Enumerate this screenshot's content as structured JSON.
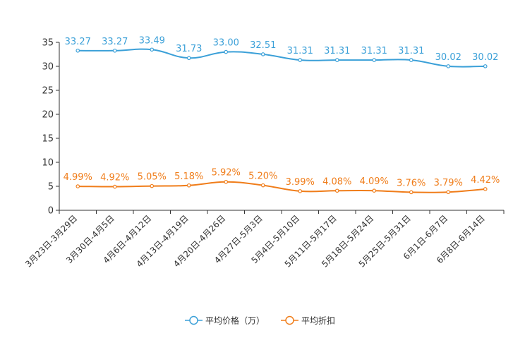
{
  "chart_data": {
    "type": "line",
    "title": "",
    "xlabel": "",
    "ylabel": "",
    "ylim": [
      0,
      35
    ],
    "yticks": [
      0,
      5,
      10,
      15,
      20,
      25,
      30,
      35
    ],
    "grid": false,
    "legend_position": "bottom-center",
    "categories": [
      "3月23日-3月29日",
      "3月30日-4月5日",
      "4月6日-4月12日",
      "4月13日-4月19日",
      "4月20日-4月26日",
      "4月27日-5月3日",
      "5月4日-5月10日",
      "5月11日-5月17日",
      "5月18日-5月24日",
      "5月25日-5月31日",
      "6月1日-6月7日",
      "6月8日-6月14日"
    ],
    "series": [
      {
        "name": "平均价格（万）",
        "color": "#3ba0d8",
        "values": [
          33.27,
          33.27,
          33.49,
          31.73,
          33.0,
          32.51,
          31.31,
          31.31,
          31.31,
          31.31,
          30.02,
          30.02
        ],
        "labels": [
          "33.27",
          "33.27",
          "33.49",
          "31.73",
          "33.00",
          "32.51",
          "31.31",
          "31.31",
          "31.31",
          "31.31",
          "30.02",
          "30.02"
        ]
      },
      {
        "name": "平均折扣",
        "color": "#f07d1a",
        "values": [
          4.99,
          4.92,
          5.05,
          5.18,
          5.92,
          5.2,
          3.99,
          4.08,
          4.09,
          3.76,
          3.79,
          4.42
        ],
        "labels": [
          "4.99%",
          "4.92%",
          "5.05%",
          "5.18%",
          "5.92%",
          "5.20%",
          "3.99%",
          "4.08%",
          "4.09%",
          "3.76%",
          "3.79%",
          "4.42%"
        ]
      }
    ]
  }
}
